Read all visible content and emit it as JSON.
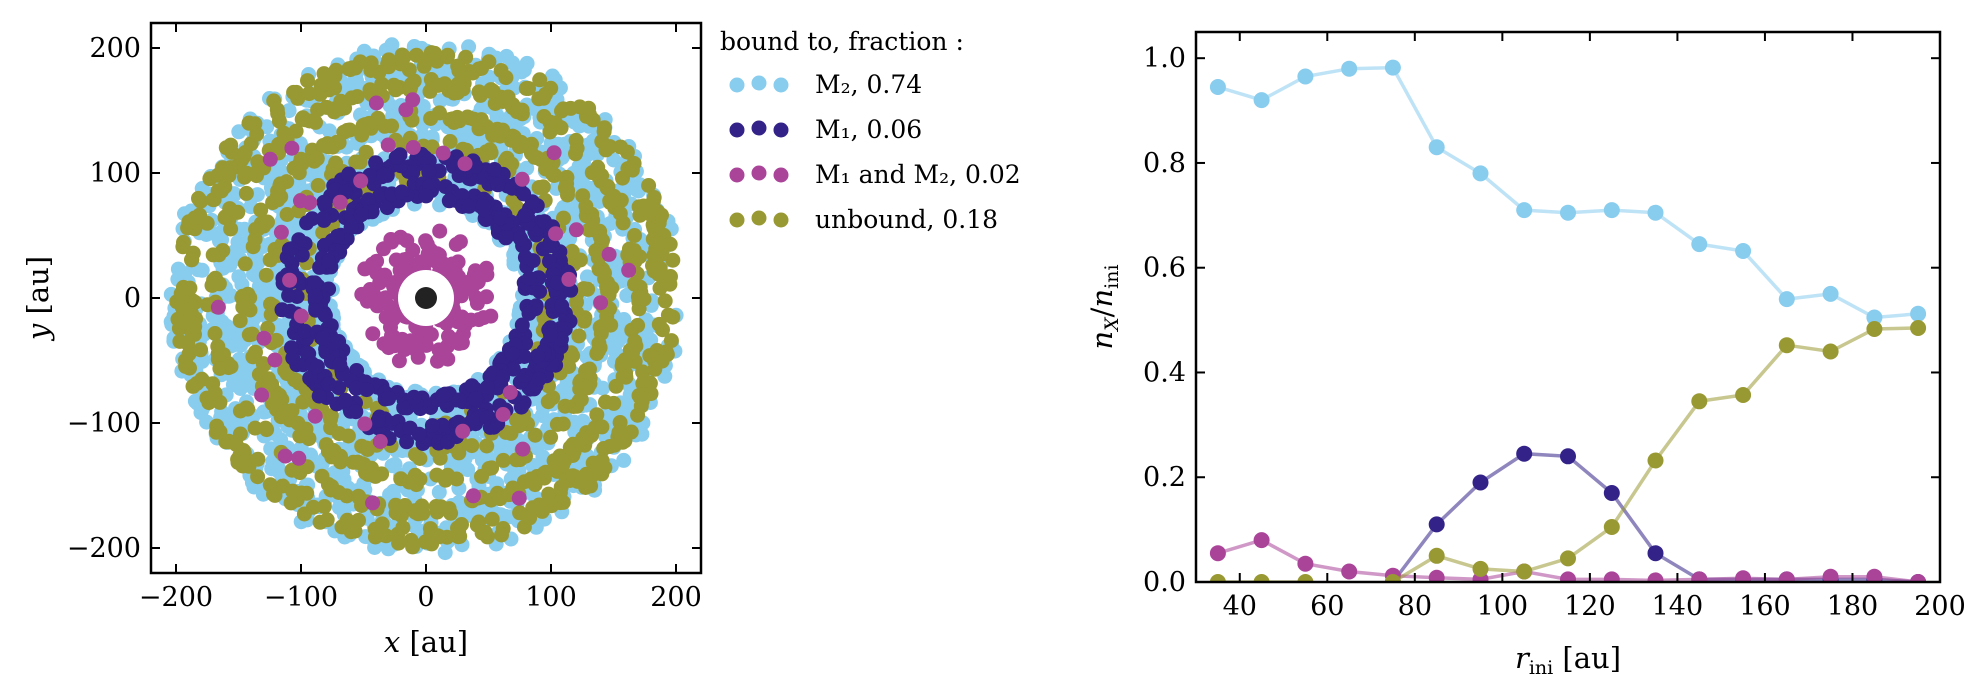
{
  "chart_data": [
    {
      "type": "scatter",
      "xlabel": "x [au]",
      "ylabel": "y [au]",
      "xlim": [
        -220,
        220
      ],
      "ylim": [
        -220,
        220
      ],
      "xticks": [
        -200,
        -100,
        0,
        100,
        200
      ],
      "yticks": [
        -200,
        -100,
        0,
        100,
        200
      ],
      "tick_labels_x": [
        "−200",
        "−100",
        "0",
        "100",
        "200"
      ],
      "tick_labels_y": [
        "−200",
        "−100",
        "0",
        "100",
        "200"
      ],
      "grid": false,
      "legend_position": "outside-right",
      "legend": {
        "title": "bound to, fraction :",
        "entries": [
          {
            "label": "M₂, 0.74",
            "color": "#88ccee"
          },
          {
            "label": "M₁, 0.06",
            "color": "#332288"
          },
          {
            "label": "M₁ and M₂, 0.02",
            "color": "#aa4499"
          },
          {
            "label": "unbound, 0.18",
            "color": "#999933"
          }
        ]
      },
      "central_object": {
        "x": 0,
        "y": 0,
        "color": "#222222"
      },
      "series": [
        {
          "color": "#88ccee",
          "rings": [
            {
              "r_min": 75,
              "r_max": 205,
              "count": 1800
            }
          ]
        },
        {
          "color": "#999933",
          "rings": [
            {
              "r_min": 140,
              "r_max": 150,
              "count": 220
            },
            {
              "r_min": 165,
              "r_max": 175,
              "count": 240
            },
            {
              "r_min": 183,
              "r_max": 200,
              "count": 320
            },
            {
              "r_min": 120,
              "r_max": 130,
              "count": 120
            },
            {
              "r_min": 95,
              "r_max": 105,
              "count": 60
            }
          ]
        },
        {
          "color": "#332288",
          "rings": [
            {
              "r_min": 100,
              "r_max": 117,
              "count": 260
            },
            {
              "r_min": 78,
              "r_max": 92,
              "count": 220
            }
          ]
        },
        {
          "color": "#aa4499",
          "rings": [
            {
              "r_min": 18,
              "r_max": 55,
              "count": 170
            },
            {
              "r_min": 100,
              "r_max": 180,
              "count": 40
            }
          ]
        }
      ]
    },
    {
      "type": "line",
      "xlabel": "r_ini [au]",
      "ylabel": "n_X / n_ini",
      "xlim": [
        30,
        200
      ],
      "ylim": [
        0,
        1.05
      ],
      "xticks": [
        40,
        60,
        80,
        100,
        120,
        140,
        160,
        180,
        200
      ],
      "yticks": [
        0,
        0.2,
        0.4,
        0.6,
        0.8,
        1.0
      ],
      "tick_labels_x": [
        "40",
        "60",
        "80",
        "100",
        "120",
        "140",
        "160",
        "180",
        "200"
      ],
      "tick_labels_y": [
        "0.0",
        "0.2",
        "0.4",
        "0.6",
        "0.8",
        "1.0"
      ],
      "grid": false,
      "x": [
        35,
        45,
        55,
        65,
        75,
        85,
        95,
        105,
        115,
        125,
        135,
        145,
        155,
        165,
        175,
        185,
        195
      ],
      "series": [
        {
          "color": "#88ccee",
          "values": [
            0.945,
            0.92,
            0.965,
            0.98,
            0.982,
            0.83,
            0.78,
            0.71,
            0.705,
            0.71,
            0.705,
            0.645,
            0.632,
            0.54,
            0.55,
            0.505,
            0.512
          ]
        },
        {
          "color": "#332288",
          "values": [
            null,
            null,
            null,
            null,
            0.0,
            0.11,
            0.19,
            0.245,
            0.24,
            0.17,
            0.055,
            0.005,
            0.005,
            0.005,
            0.005,
            0.005,
            0.0
          ]
        },
        {
          "color": "#aa4499",
          "values": [
            0.055,
            0.08,
            0.035,
            0.02,
            0.012,
            0.008,
            0.005,
            0.02,
            0.005,
            0.005,
            0.003,
            0.005,
            0.007,
            0.005,
            0.01,
            0.01,
            0.0
          ]
        },
        {
          "color": "#999933",
          "values": [
            0.0,
            0.0,
            0.0,
            null,
            0.0,
            0.05,
            0.025,
            0.02,
            0.045,
            0.105,
            0.232,
            0.345,
            0.357,
            0.452,
            0.44,
            0.483,
            0.485
          ]
        }
      ]
    }
  ]
}
